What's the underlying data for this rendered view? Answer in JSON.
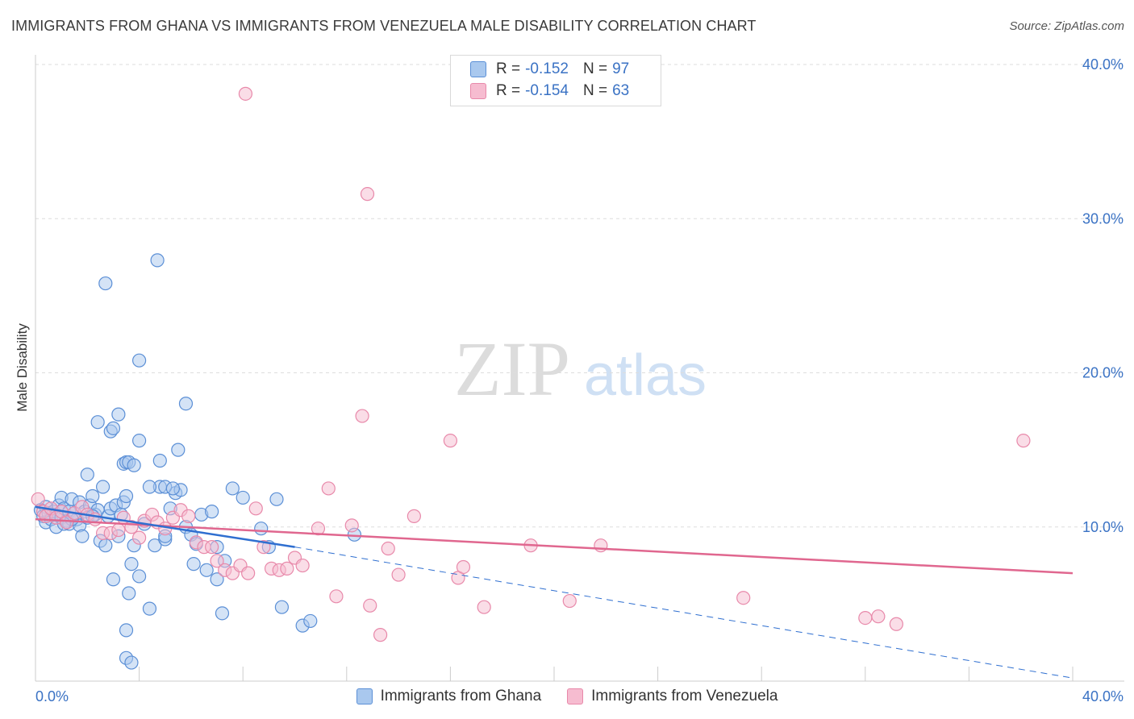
{
  "title": "IMMIGRANTS FROM GHANA VS IMMIGRANTS FROM VENEZUELA MALE DISABILITY CORRELATION CHART",
  "source": "Source: ZipAtlas.com",
  "watermark": {
    "zip": "ZIP",
    "atlas": "atlas"
  },
  "colors": {
    "ghana_fill": "#a9c8ee",
    "ghana_stroke": "#5b8fd6",
    "ghana_line": "#2f6fd0",
    "venezuela_fill": "#f6bcd0",
    "venezuela_stroke": "#e889aa",
    "venezuela_line": "#e0678f",
    "tick_text": "#3a72c4",
    "grid": "#dddddd"
  },
  "legend_top": [
    {
      "r_label": "R =",
      "r_value": "-0.152",
      "n_label": "N =",
      "n_value": "97"
    },
    {
      "r_label": "R =",
      "r_value": "-0.154",
      "n_label": "N =",
      "n_value": "63"
    }
  ],
  "legend_bottom": [
    "Immigrants from Ghana",
    "Immigrants from Venezuela"
  ],
  "chart_data": {
    "type": "scatter",
    "title": "IMMIGRANTS FROM GHANA VS IMMIGRANTS FROM VENEZUELA MALE DISABILITY CORRELATION CHART",
    "xlabel": "",
    "ylabel": "Male Disability",
    "xlim": [
      0,
      40
    ],
    "ylim": [
      0,
      40
    ],
    "x_tick_labels": [
      "0.0%",
      "40.0%"
    ],
    "y_ticks": [
      10,
      20,
      30,
      40
    ],
    "y_tick_labels": [
      "10.0%",
      "20.0%",
      "30.0%",
      "40.0%"
    ],
    "grid": true,
    "series": [
      {
        "name": "Immigrants from Ghana",
        "R": -0.152,
        "N": 97,
        "trend": {
          "x": [
            0,
            10
          ],
          "y": [
            11.3,
            8.7
          ],
          "dashed_extension": {
            "x": [
              10,
              40
            ],
            "y": [
              8.7,
              0.2
            ]
          }
        },
        "points": [
          [
            0.2,
            11.1
          ],
          [
            0.3,
            10.7
          ],
          [
            0.4,
            11.3
          ],
          [
            0.4,
            10.3
          ],
          [
            0.5,
            10.9
          ],
          [
            0.6,
            10.5
          ],
          [
            0.7,
            11.0
          ],
          [
            0.8,
            10.0
          ],
          [
            0.8,
            10.8
          ],
          [
            0.9,
            11.4
          ],
          [
            1.0,
            11.9
          ],
          [
            1.0,
            10.6
          ],
          [
            1.1,
            11.2
          ],
          [
            1.2,
            10.4
          ],
          [
            1.3,
            11.0
          ],
          [
            1.3,
            10.2
          ],
          [
            1.4,
            11.8
          ],
          [
            1.5,
            10.9
          ],
          [
            1.6,
            10.5
          ],
          [
            1.7,
            10.1
          ],
          [
            1.7,
            11.6
          ],
          [
            1.8,
            9.4
          ],
          [
            1.9,
            11.0
          ],
          [
            2.0,
            10.6
          ],
          [
            2.1,
            11.4
          ],
          [
            2.2,
            12.0
          ],
          [
            2.3,
            10.8
          ],
          [
            2.4,
            11.1
          ],
          [
            2.5,
            9.1
          ],
          [
            2.6,
            12.6
          ],
          [
            2.7,
            8.8
          ],
          [
            2.8,
            10.7
          ],
          [
            2.9,
            11.2
          ],
          [
            3.0,
            6.6
          ],
          [
            3.1,
            11.4
          ],
          [
            3.2,
            9.4
          ],
          [
            3.3,
            10.8
          ],
          [
            3.4,
            11.6
          ],
          [
            3.5,
            12.0
          ],
          [
            3.6,
            5.7
          ],
          [
            3.7,
            7.6
          ],
          [
            3.8,
            8.8
          ],
          [
            4.0,
            6.8
          ],
          [
            4.2,
            10.2
          ],
          [
            4.4,
            4.7
          ],
          [
            4.6,
            8.8
          ],
          [
            4.8,
            12.6
          ],
          [
            5.0,
            9.2
          ],
          [
            5.2,
            11.2
          ],
          [
            5.4,
            12.2
          ],
          [
            5.6,
            12.4
          ],
          [
            5.8,
            10.0
          ],
          [
            6.0,
            9.5
          ],
          [
            6.2,
            8.9
          ],
          [
            6.4,
            10.8
          ],
          [
            6.6,
            7.2
          ],
          [
            6.8,
            11.0
          ],
          [
            7.0,
            8.7
          ],
          [
            7.3,
            7.8
          ],
          [
            7.6,
            12.5
          ],
          [
            7.0,
            6.6
          ],
          [
            7.2,
            4.4
          ],
          [
            3.5,
            3.3
          ],
          [
            2.0,
            13.4
          ],
          [
            2.4,
            16.8
          ],
          [
            2.9,
            16.2
          ],
          [
            3.0,
            16.4
          ],
          [
            3.2,
            17.3
          ],
          [
            3.4,
            14.1
          ],
          [
            3.5,
            14.2
          ],
          [
            3.6,
            14.2
          ],
          [
            3.8,
            14.0
          ],
          [
            4.0,
            15.6
          ],
          [
            4.4,
            12.6
          ],
          [
            4.8,
            14.3
          ],
          [
            5.0,
            12.6
          ],
          [
            5.3,
            12.5
          ],
          [
            5.5,
            15.0
          ],
          [
            5.8,
            18.0
          ],
          [
            4.0,
            20.8
          ],
          [
            2.7,
            25.8
          ],
          [
            4.7,
            27.3
          ],
          [
            3.5,
            1.5
          ],
          [
            3.7,
            1.2
          ],
          [
            8.7,
            9.9
          ],
          [
            9.0,
            8.7
          ],
          [
            9.3,
            11.8
          ],
          [
            9.5,
            4.8
          ],
          [
            10.3,
            3.6
          ],
          [
            10.6,
            3.9
          ],
          [
            12.3,
            9.5
          ],
          [
            8.0,
            11.9
          ],
          [
            1.4,
            10.5
          ],
          [
            1.1,
            10.2
          ],
          [
            2.2,
            10.7
          ],
          [
            5.0,
            9.4
          ],
          [
            6.1,
            7.6
          ]
        ]
      },
      {
        "name": "Immigrants from Venezuela",
        "R": -0.154,
        "N": 63,
        "trend": {
          "x": [
            0,
            40
          ],
          "y": [
            10.5,
            7.0
          ]
        },
        "points": [
          [
            0.1,
            11.8
          ],
          [
            0.3,
            11.0
          ],
          [
            0.4,
            10.7
          ],
          [
            0.6,
            11.2
          ],
          [
            0.8,
            10.6
          ],
          [
            1.0,
            11.0
          ],
          [
            1.2,
            10.3
          ],
          [
            1.5,
            10.9
          ],
          [
            1.8,
            11.3
          ],
          [
            2.0,
            10.8
          ],
          [
            2.3,
            10.5
          ],
          [
            2.6,
            9.6
          ],
          [
            2.9,
            9.6
          ],
          [
            3.2,
            9.8
          ],
          [
            3.4,
            10.6
          ],
          [
            3.7,
            10.0
          ],
          [
            4.0,
            9.3
          ],
          [
            4.2,
            10.4
          ],
          [
            4.5,
            10.8
          ],
          [
            4.7,
            10.3
          ],
          [
            5.0,
            9.9
          ],
          [
            5.3,
            10.6
          ],
          [
            5.6,
            11.1
          ],
          [
            5.9,
            10.7
          ],
          [
            6.2,
            9.0
          ],
          [
            6.5,
            8.7
          ],
          [
            6.8,
            8.7
          ],
          [
            7.0,
            7.8
          ],
          [
            7.3,
            7.2
          ],
          [
            7.6,
            7.0
          ],
          [
            7.9,
            7.5
          ],
          [
            8.2,
            7.0
          ],
          [
            8.5,
            11.2
          ],
          [
            8.8,
            8.7
          ],
          [
            9.1,
            7.3
          ],
          [
            9.4,
            7.2
          ],
          [
            9.7,
            7.3
          ],
          [
            10.0,
            8.0
          ],
          [
            10.3,
            7.5
          ],
          [
            10.9,
            9.9
          ],
          [
            11.3,
            12.5
          ],
          [
            11.6,
            5.5
          ],
          [
            12.2,
            10.1
          ],
          [
            12.6,
            17.2
          ],
          [
            12.9,
            4.9
          ],
          [
            13.3,
            3.0
          ],
          [
            13.6,
            8.6
          ],
          [
            14.0,
            6.9
          ],
          [
            14.6,
            10.7
          ],
          [
            16.0,
            15.6
          ],
          [
            16.3,
            6.7
          ],
          [
            16.5,
            7.4
          ],
          [
            17.3,
            4.8
          ],
          [
            19.1,
            8.8
          ],
          [
            20.6,
            5.2
          ],
          [
            21.8,
            8.8
          ],
          [
            27.3,
            5.4
          ],
          [
            32.0,
            4.1
          ],
          [
            32.5,
            4.2
          ],
          [
            33.2,
            3.7
          ],
          [
            38.1,
            15.6
          ],
          [
            12.8,
            31.6
          ],
          [
            8.1,
            38.1
          ]
        ]
      }
    ]
  }
}
